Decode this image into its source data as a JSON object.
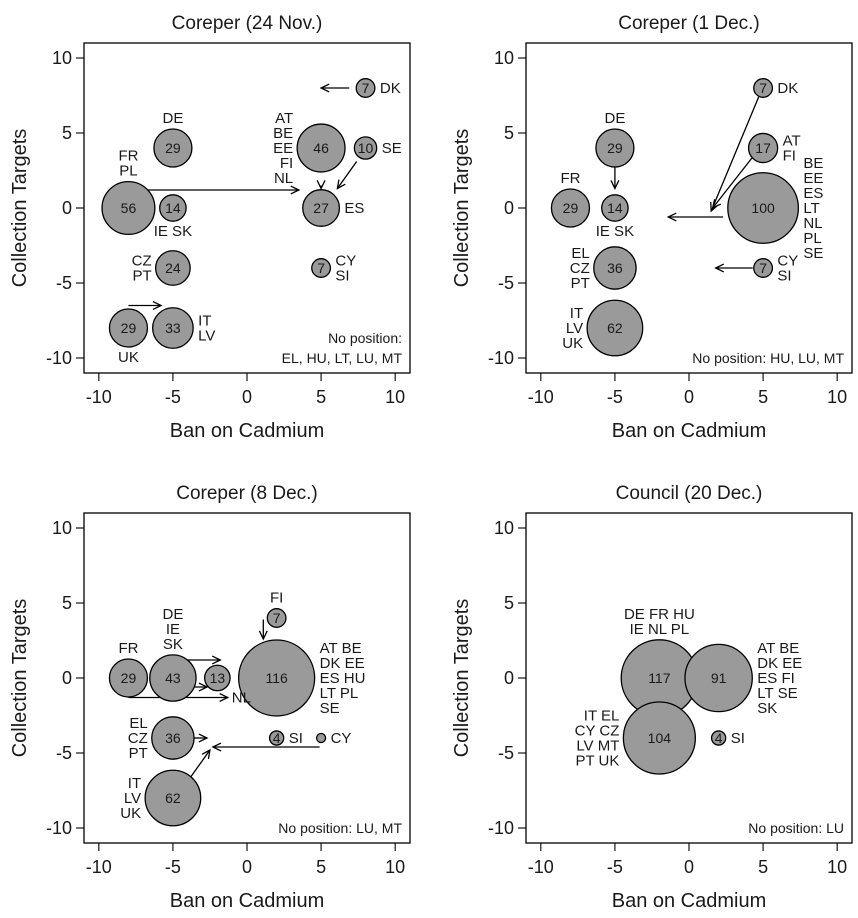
{
  "chart_data": [
    {
      "type": "bubble",
      "title": "Coreper (24 Nov.)",
      "xlabel": "Ban on Cadmium",
      "ylabel": "Collection Targets",
      "xlim": [
        -11,
        11
      ],
      "ylim": [
        -11,
        11
      ],
      "xticks": [
        -10,
        -5,
        0,
        5,
        10
      ],
      "yticks": [
        10,
        5,
        0,
        -5,
        -10
      ],
      "bubbles": [
        {
          "x": -8,
          "y": 0,
          "value": 56,
          "countries": [
            "FR",
            "PL"
          ],
          "label_pos": "above"
        },
        {
          "x": -5,
          "y": 4,
          "value": 29,
          "countries": [
            "DE"
          ],
          "label_pos": "above"
        },
        {
          "x": -5,
          "y": 0,
          "value": 14,
          "countries": [
            "IE SK"
          ],
          "label_pos": "below"
        },
        {
          "x": -5,
          "y": -4,
          "value": 24,
          "countries": [
            "CZ",
            "PT"
          ],
          "label_pos": "left"
        },
        {
          "x": -8,
          "y": -8,
          "value": 29,
          "countries": [
            "UK"
          ],
          "label_pos": "below"
        },
        {
          "x": -5,
          "y": -8,
          "value": 33,
          "countries": [
            "IT",
            "LV"
          ],
          "label_pos": "right"
        },
        {
          "x": 5,
          "y": 4,
          "value": 46,
          "countries": [
            "AT",
            "BE",
            "EE",
            "FI",
            "NL"
          ],
          "label_pos": "left"
        },
        {
          "x": 8,
          "y": 4,
          "value": 10,
          "countries": [
            "SE"
          ],
          "label_pos": "right"
        },
        {
          "x": 8,
          "y": 8,
          "value": 7,
          "countries": [
            "DK"
          ],
          "label_pos": "right"
        },
        {
          "x": 5,
          "y": 0,
          "value": 27,
          "countries": [
            "ES"
          ],
          "label_pos": "right"
        },
        {
          "x": 5,
          "y": -4,
          "value": 7,
          "countries": [
            "CY",
            "SI"
          ],
          "label_pos": "right"
        }
      ],
      "arrows": [
        {
          "from": [
            -8,
            1.2
          ],
          "to": [
            3.5,
            1.2
          ]
        },
        {
          "from": [
            5,
            1.5
          ],
          "to": [
            5,
            1.3
          ]
        },
        {
          "from": [
            7.4,
            3.1
          ],
          "to": [
            6.1,
            1.3
          ]
        },
        {
          "from": [
            6.9,
            8
          ],
          "to": [
            5,
            8
          ]
        },
        {
          "from": [
            -8,
            -6.5
          ],
          "to": [
            -5.8,
            -6.5
          ]
        }
      ],
      "note": [
        "No position:",
        "EL, HU, LT, LU, MT"
      ]
    },
    {
      "type": "bubble",
      "title": "Coreper (1 Dec.)",
      "xlabel": "Ban on Cadmium",
      "ylabel": "Collection Targets",
      "xlim": [
        -11,
        11
      ],
      "ylim": [
        -11,
        11
      ],
      "xticks": [
        -10,
        -5,
        0,
        5,
        10
      ],
      "yticks": [
        10,
        5,
        0,
        -5,
        -10
      ],
      "bubbles": [
        {
          "x": -8,
          "y": 0,
          "value": 29,
          "countries": [
            "FR"
          ],
          "label_pos": "above"
        },
        {
          "x": -5,
          "y": 4,
          "value": 29,
          "countries": [
            "DE"
          ],
          "label_pos": "above"
        },
        {
          "x": -5,
          "y": 0,
          "value": 14,
          "countries": [
            "IE SK"
          ],
          "label_pos": "below"
        },
        {
          "x": -5,
          "y": -4,
          "value": 36,
          "countries": [
            "EL",
            "CZ",
            "PT"
          ],
          "label_pos": "left"
        },
        {
          "x": -5,
          "y": -8,
          "value": 62,
          "countries": [
            "IT",
            "LV",
            "UK"
          ],
          "label_pos": "left"
        },
        {
          "x": 5,
          "y": 8,
          "value": 7,
          "countries": [
            "DK"
          ],
          "label_pos": "right"
        },
        {
          "x": 5,
          "y": 4,
          "value": 17,
          "countries": [
            "AT",
            "FI"
          ],
          "label_pos": "right"
        },
        {
          "x": 5,
          "y": 0,
          "value": 100,
          "countries": [
            "BE",
            "EE",
            "ES",
            "LT",
            "NL",
            "PL",
            "SE"
          ],
          "label_pos": "right"
        },
        {
          "x": 5,
          "y": -4,
          "value": 7,
          "countries": [
            "CY",
            "SI"
          ],
          "label_pos": "right"
        }
      ],
      "arrows": [
        {
          "from": [
            -5,
            2.9
          ],
          "to": [
            -5,
            1.3
          ]
        },
        {
          "from": [
            2.3,
            -0.6
          ],
          "to": [
            -1.4,
            -0.6
          ]
        },
        {
          "from": [
            4.7,
            7.4
          ],
          "to": [
            1.5,
            -0.2
          ]
        },
        {
          "from": [
            4.3,
            3.4
          ],
          "to": [
            1.6,
            0
          ]
        },
        {
          "from": [
            4.3,
            -4
          ],
          "to": [
            1.8,
            -4
          ]
        }
      ],
      "note": [
        "No position: HU, LU, MT"
      ]
    },
    {
      "type": "bubble",
      "title": "Coreper (8 Dec.)",
      "xlabel": "Ban on Cadmium",
      "ylabel": "Collection Targets",
      "xlim": [
        -11,
        11
      ],
      "ylim": [
        -11,
        11
      ],
      "xticks": [
        -10,
        -5,
        0,
        5,
        10
      ],
      "yticks": [
        10,
        5,
        0,
        -5,
        -10
      ],
      "bubbles": [
        {
          "x": -8,
          "y": 0,
          "value": 29,
          "countries": [
            "FR"
          ],
          "label_pos": "above"
        },
        {
          "x": -5,
          "y": 0,
          "value": 43,
          "countries": [
            "DE",
            "IE",
            "SK"
          ],
          "label_pos": "above"
        },
        {
          "x": -2,
          "y": 0,
          "value": 13,
          "countries": [],
          "label_pos": "none"
        },
        {
          "x": 2,
          "y": 0,
          "value": 116,
          "countries": [
            "AT BE",
            "DK EE",
            "ES HU",
            "LT PL",
            "SE"
          ],
          "label_pos": "right"
        },
        {
          "x": 2,
          "y": 4,
          "value": 7,
          "countries": [
            "FI"
          ],
          "label_pos": "above"
        },
        {
          "x": -5,
          "y": -4,
          "value": 36,
          "countries": [
            "EL",
            "CZ",
            "PT"
          ],
          "label_pos": "left"
        },
        {
          "x": -5,
          "y": -8,
          "value": 62,
          "countries": [
            "IT",
            "LV",
            "UK"
          ],
          "label_pos": "left"
        },
        {
          "x": 2,
          "y": -4,
          "value": 4,
          "countries": [
            "SI"
          ],
          "label_pos": "right"
        },
        {
          "x": 5,
          "y": -4,
          "value": 1,
          "countries": [
            "CY"
          ],
          "label_pos": "right"
        }
      ],
      "arrows": [
        {
          "from": [
            -5.8,
            1.2
          ],
          "to": [
            -1.8,
            1.2
          ]
        },
        {
          "from": [
            1.1,
            3.9
          ],
          "to": [
            1.1,
            2.6
          ]
        },
        {
          "from": [
            -8,
            -1.3
          ],
          "to": [
            -1.3,
            -1.3
          ]
        },
        {
          "from": [
            -3.8,
            -0.6
          ],
          "to": [
            -2.7,
            -0.6
          ]
        },
        {
          "from": [
            -3.6,
            -4
          ],
          "to": [
            -2.7,
            -4
          ]
        },
        {
          "from": [
            4.9,
            -4.6
          ],
          "to": [
            -2.3,
            -4.6
          ]
        },
        {
          "from": [
            -3.8,
            -6.6
          ],
          "to": [
            -2.5,
            -4.8
          ]
        }
      ],
      "inline_labels": [
        {
          "text": "NL",
          "x": -1.3,
          "y": -1.3
        }
      ],
      "note": [
        "No position: LU, MT"
      ]
    },
    {
      "type": "bubble",
      "title": "Council (20 Dec.)",
      "xlabel": "Ban on Cadmium",
      "ylabel": "Collection Targets",
      "xlim": [
        -11,
        11
      ],
      "ylim": [
        -11,
        11
      ],
      "xticks": [
        -10,
        -5,
        0,
        5,
        10
      ],
      "yticks": [
        10,
        5,
        0,
        -5,
        -10
      ],
      "bubbles": [
        {
          "x": -2,
          "y": 0,
          "value": 117,
          "countries": [
            "DE FR HU",
            "IE NL PL"
          ],
          "label_pos": "above"
        },
        {
          "x": 2,
          "y": 0,
          "value": 91,
          "countries": [
            "AT BE",
            "DK EE",
            "ES FI",
            "LT SE",
            "SK"
          ],
          "label_pos": "right"
        },
        {
          "x": -2,
          "y": -4,
          "value": 104,
          "countries": [
            "IT EL",
            "CY CZ",
            "LV MT",
            "PT UK"
          ],
          "label_pos": "left"
        },
        {
          "x": 2,
          "y": -4,
          "value": 4,
          "countries": [
            "SI"
          ],
          "label_pos": "right"
        }
      ],
      "arrows": [],
      "note": [
        "No position: LU"
      ]
    }
  ]
}
